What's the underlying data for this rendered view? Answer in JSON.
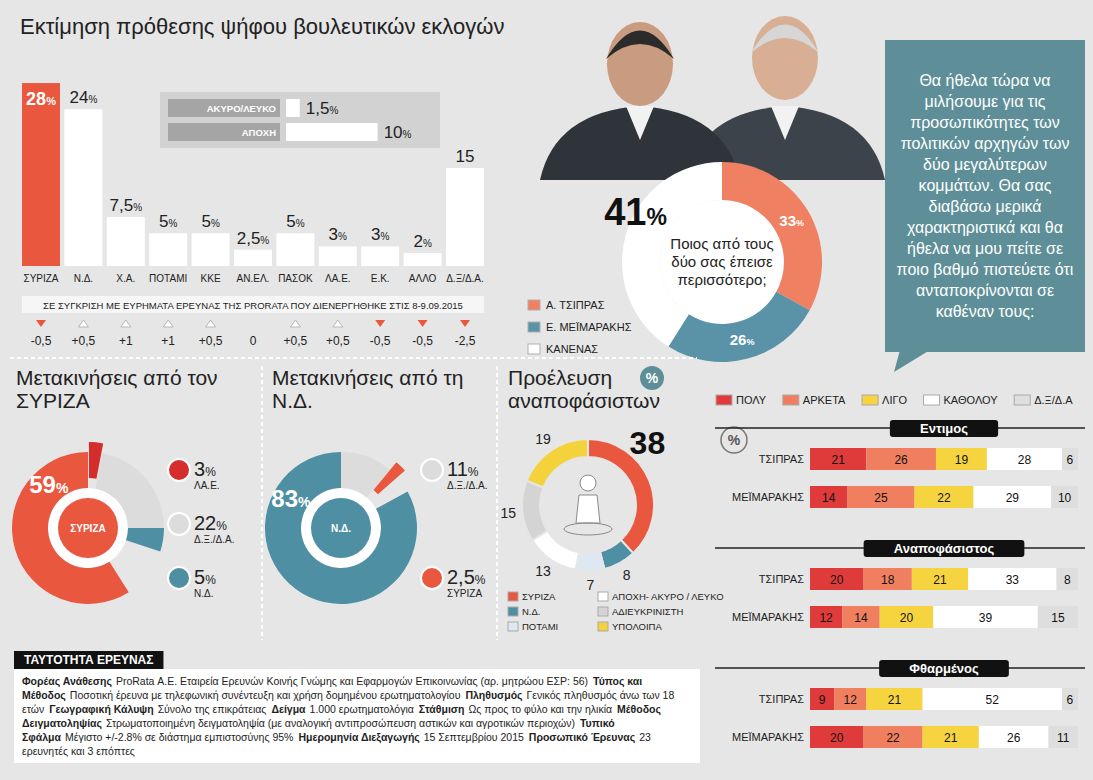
{
  "chart_data": [
    {
      "type": "bar",
      "title": "Εκτίμηση πρόθεσης ψήφου βουλευτικών εκλογών",
      "categories": [
        "ΣΥΡΙΖΑ",
        "Ν.Δ.",
        "Χ.Α.",
        "ΠΟΤΑΜΙ",
        "ΚΚΕ",
        "ΑΝ.ΕΛ.",
        "ΠΑΣΟΚ",
        "ΛΑ.Ε.",
        "Ε.Κ.",
        "ΑΛΛΟ",
        "Δ.Ξ/Δ.Α."
      ],
      "values": [
        28,
        24,
        7.5,
        5,
        5,
        2.5,
        5,
        3,
        3,
        2,
        15
      ],
      "value_labels": [
        "28%",
        "24%",
        "7,5%",
        "5%",
        "5%",
        "2,5%",
        "5%",
        "3%",
        "3%",
        "2%",
        "15"
      ],
      "colors": [
        "#e9573f",
        "#ffffff",
        "#ffffff",
        "#ffffff",
        "#ffffff",
        "#ffffff",
        "#ffffff",
        "#ffffff",
        "#ffffff",
        "#ffffff",
        "#ffffff"
      ],
      "ylim": [
        0,
        30
      ],
      "tick_labels": false,
      "data_labels": true,
      "changes": {
        "title": "ΣΕ ΣΥΓΚΡΙΣΗ ΜΕ ΕΥΡΗΜΑΤΑ ΕΡΕΥΝΑΣ ΤΗΣ PRORATA ΠΟΥ ΔΙΕΝΕΡΓΗΘΗΚΕ ΣΤΙΣ 8-9.09.2015",
        "values": [
          -0.5,
          0.5,
          1,
          1,
          0.5,
          0,
          0.5,
          0.5,
          -0.5,
          -0.5,
          -2.5
        ],
        "value_labels": [
          "-0,5",
          "+0,5",
          "+1",
          "+1",
          "+0,5",
          "0",
          "+0,5",
          "+0,5",
          "-0,5",
          "-0,5",
          "-2,5"
        ]
      }
    },
    {
      "type": "bar",
      "orientation": "horizontal",
      "categories": [
        "ΑΚΥΡΟ/ΛΕΥΚΟ",
        "ΑΠΟΧΗ"
      ],
      "values": [
        1.5,
        10
      ],
      "value_labels": [
        "1,5%",
        "10%"
      ],
      "color": "#ffffff",
      "xlim": [
        0,
        12
      ],
      "tick_labels": false,
      "data_labels": true
    },
    {
      "type": "pie",
      "title": "Ποιος από τους δύο σας έπεισε περισσότερο;",
      "categories": [
        "Α. ΤΣΙΠΡΑΣ",
        "Ε. ΜΕΪΜΑΡΑΚΗΣ",
        "ΚΑΝΕΝΑΣ"
      ],
      "values": [
        33,
        26,
        41
      ],
      "value_labels": [
        "33%",
        "26%",
        "41%"
      ],
      "colors": [
        "#f08062",
        "#5a93a8",
        "#ffffff"
      ],
      "legend": "left",
      "data_labels": true
    },
    {
      "type": "pie",
      "title": "Μετακινήσεις από τον ΣΥΡΙΖΑ",
      "categories": [
        "ΣΥΡΙΖΑ",
        "ΛΑ.Ε.",
        "Δ.Ξ./Δ.Α.",
        "Ν.Δ."
      ],
      "values": [
        59,
        3,
        22,
        5
      ],
      "value_labels": [
        "59%",
        "3%",
        "22%",
        "5%"
      ],
      "colors": [
        "#e9573f",
        "#d42d2b",
        "#dcdcdc",
        "#4f8fa3"
      ],
      "data_labels": true
    },
    {
      "type": "pie",
      "title": "Μετακινήσεις από τη Ν.Δ.",
      "categories": [
        "Ν.Δ.",
        "Δ.Ξ./Δ.Α.",
        "ΣΥΡΙΖΑ"
      ],
      "values": [
        83,
        11,
        2.5
      ],
      "value_labels": [
        "83%",
        "11%",
        "2,5%"
      ],
      "colors": [
        "#4f8fa3",
        "#dcdcdc",
        "#e9573f"
      ],
      "data_labels": true
    },
    {
      "type": "pie",
      "title": "Προέλευση αναποφάσιστων",
      "badge": "%",
      "categories": [
        "ΣΥΡΙΖΑ",
        "Ν.Δ.",
        "ΠΟΤΑΜΙ",
        "ΑΠΟΧΗ- ΑΚΥΡΟ / ΛΕΥΚΟ",
        "ΑΔΙΕΥΚΡΙΝΙΣΤΗ",
        "ΥΠΟΛΟΙΠΑ"
      ],
      "values": [
        38,
        8,
        7,
        13,
        15,
        19
      ],
      "colors": [
        "#e9573f",
        "#4f8fa3",
        "#dde8f2",
        "#ffffff",
        "#d4d4d4",
        "#f4d23c"
      ],
      "legend": "bottom",
      "data_labels": true
    },
    {
      "type": "bar",
      "orientation": "horizontal",
      "stacked": true,
      "badge": "%",
      "groups": [
        "Εντιμος",
        "Αναποφάσιστος",
        "Φθαρμένος"
      ],
      "categories": [
        "ΤΣΙΠΡΑΣ",
        "ΜΕΪΜΑΡΑΚΗΣ",
        "ΤΣΙΠΡΑΣ",
        "ΜΕΪΜΑΡΑΚΗΣ",
        "ΤΣΙΠΡΑΣ",
        "ΜΕΪΜΑΡΑΚΗΣ"
      ],
      "series": [
        {
          "name": "ΠΟΛΥ",
          "color": "#e03b3b",
          "values": [
            21,
            14,
            20,
            12,
            9,
            20
          ]
        },
        {
          "name": "ΑΡΚΕΤΑ",
          "color": "#f07f60",
          "values": [
            26,
            25,
            18,
            14,
            12,
            22
          ]
        },
        {
          "name": "ΛΙΓΟ",
          "color": "#f5d440",
          "values": [
            19,
            22,
            21,
            20,
            21,
            21
          ]
        },
        {
          "name": "ΚΑΘΟΛΟΥ",
          "color": "#ffffff",
          "values": [
            28,
            29,
            33,
            39,
            52,
            26
          ]
        },
        {
          "name": "Δ.Ξ/Δ.Α",
          "color": "#dedede",
          "values": [
            6,
            10,
            8,
            15,
            6,
            11
          ]
        }
      ],
      "xlim": [
        0,
        100
      ],
      "tick_labels": false,
      "data_labels": true,
      "legend": "top"
    }
  ],
  "question": "Θα ήθελα τώρα να μιλήσουμε για τις προσωπικότητες των πολιτικών αρχηγών των δύο μεγαλύτερων κομμάτων. Θα σας διαβάσω μερικά χαρακτηριστικά και θα ήθελα να μου πείτε σε ποιο βαθμό πιστεύετε ότι ανταποκρίνονται σε καθέναν τους:",
  "survey": {
    "title": "ΤΑΥΤΟΤΗΤΑ ΕΡΕΥΝΑΣ",
    "items": [
      {
        "label": "Φορέας Ανάθεσης",
        "text": "ProRata Α.Ε. Εταιρεία Ερευνών Κοινής Γνώμης και Εφαρμογών Επικοινωνίας (αρ. μητρώου ΕΣΡ: 56)"
      },
      {
        "label": "Τύπος και Μέθοδος",
        "text": "Ποσοτική έρευνα με τηλεφωνική συνέντευξη και χρήση δομημένου ερωτηματολογίου"
      },
      {
        "label": "Πληθυσμός",
        "text": "Γενικός πληθυσμός άνω των 18 ετών"
      },
      {
        "label": "Γεωγραφική Κάλυψη",
        "text": "Σύνολο της επικράτειας"
      },
      {
        "label": "Δείγμα",
        "text": "1.000 ερωτηματολόγια"
      },
      {
        "label": "Στάθμιση",
        "text": "Ως προς το φύλο και την ηλικία"
      },
      {
        "label": "Μέθοδος Δειγματοληψίας",
        "text": "Στρωματοποιημένη δειγματοληψία (με αναλογική αντιπροσώπευση αστικών και αγροτικών περιοχών)"
      },
      {
        "label": "Τυπικό Σφάλμα",
        "text": "Μέγιστο +/-2.8% σε διάστημα εμπιστοσύνης 95%"
      },
      {
        "label": "Ημερομηνία Διεξαγωγής",
        "text": "15 Σεπτεμβρίου 2015"
      },
      {
        "label": "Προσωπικό Έρευνας",
        "text": "23 ερευνητές και 3 επόπτες"
      }
    ]
  }
}
